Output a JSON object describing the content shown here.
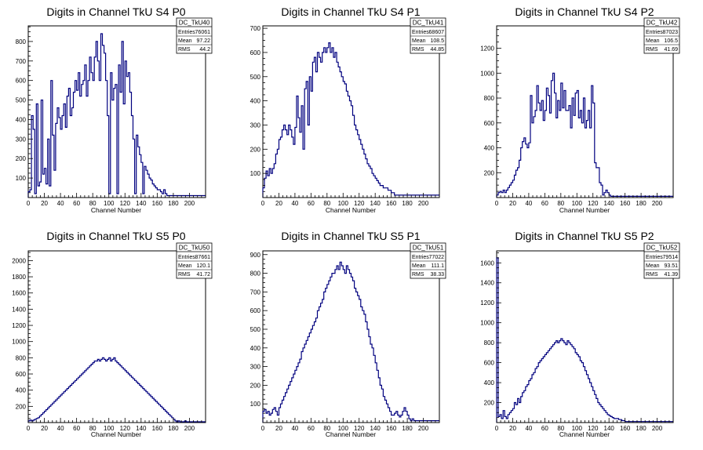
{
  "line_color": "#00007f",
  "chart_data": [
    {
      "type": "histogram",
      "title": "Digits in Channel TkU S4 P0",
      "xlabel": "Channel Number",
      "xlim": [
        0,
        220
      ],
      "ylim": [
        0,
        880
      ],
      "yticks": [
        100,
        200,
        300,
        400,
        500,
        600,
        700,
        800
      ],
      "stats": {
        "name": "DC_TkU40",
        "Entries": "76061",
        "Mean": "97.22",
        "RMS": "44.2"
      },
      "bin_width": 2,
      "values": [
        30,
        40,
        420,
        350,
        20,
        480,
        60,
        80,
        500,
        120,
        150,
        70,
        300,
        60,
        600,
        320,
        140,
        380,
        460,
        410,
        350,
        420,
        480,
        360,
        520,
        560,
        420,
        460,
        540,
        600,
        550,
        640,
        520,
        580,
        600,
        680,
        520,
        600,
        720,
        640,
        600,
        720,
        800,
        700,
        600,
        840,
        780,
        740,
        600,
        420,
        20,
        640,
        500,
        560,
        580,
        20,
        680,
        540,
        800,
        480,
        700,
        620,
        640,
        540,
        420,
        300,
        20,
        320,
        260,
        220,
        180,
        20,
        160,
        140,
        120,
        100,
        90,
        70,
        60,
        50,
        40,
        40,
        30,
        20,
        40,
        20,
        10,
        10,
        10,
        10,
        10,
        10,
        10,
        10,
        10,
        10,
        10,
        10,
        10,
        10,
        10,
        10,
        10,
        10,
        10,
        10,
        10,
        10,
        10,
        10
      ]
    },
    {
      "type": "histogram",
      "title": "Digits in Channel TkU S4 P1",
      "xlabel": "Channel Number",
      "xlim": [
        0,
        220
      ],
      "ylim": [
        0,
        710
      ],
      "yticks": [
        100,
        200,
        300,
        400,
        500,
        600,
        700
      ],
      "stats": {
        "name": "DC_TkU41",
        "Entries": "68607",
        "Mean": "108.5",
        "RMS": "44.85"
      },
      "bin_width": 2,
      "values": [
        40,
        80,
        110,
        90,
        120,
        100,
        120,
        140,
        180,
        200,
        240,
        250,
        280,
        300,
        280,
        260,
        300,
        280,
        250,
        220,
        290,
        420,
        330,
        270,
        380,
        200,
        450,
        480,
        300,
        500,
        440,
        560,
        580,
        520,
        600,
        580,
        560,
        600,
        620,
        600,
        620,
        640,
        600,
        620,
        580,
        600,
        560,
        540,
        520,
        500,
        480,
        470,
        440,
        420,
        400,
        380,
        340,
        300,
        280,
        260,
        240,
        220,
        200,
        180,
        160,
        140,
        130,
        120,
        100,
        90,
        80,
        70,
        60,
        50,
        50,
        40,
        40,
        40,
        30,
        30,
        20,
        20,
        10,
        10,
        10,
        10,
        10,
        10,
        10,
        10,
        10,
        10,
        10,
        10,
        10,
        10,
        10,
        10,
        10,
        10,
        10,
        10,
        10,
        10,
        10,
        10,
        10,
        10,
        10,
        10
      ]
    },
    {
      "type": "histogram",
      "title": "Digits in Channel TkU S4 P2",
      "xlabel": "Channel Number",
      "xlim": [
        0,
        220
      ],
      "ylim": [
        0,
        1380
      ],
      "yticks": [
        200,
        400,
        600,
        800,
        1000,
        1200
      ],
      "stats": {
        "name": "DC_TkU42",
        "Entries": "87023",
        "Mean": "106.5",
        "RMS": "41.69"
      },
      "bin_width": 2,
      "values": [
        20,
        40,
        50,
        40,
        60,
        40,
        60,
        80,
        100,
        120,
        140,
        180,
        220,
        240,
        300,
        400,
        450,
        480,
        430,
        400,
        440,
        820,
        600,
        650,
        700,
        900,
        760,
        700,
        780,
        620,
        700,
        880,
        820,
        680,
        940,
        1000,
        840,
        640,
        780,
        700,
        920,
        720,
        860,
        700,
        700,
        740,
        560,
        800,
        660,
        840,
        860,
        640,
        700,
        600,
        800,
        560,
        620,
        700,
        560,
        900,
        760,
        280,
        240,
        240,
        120,
        100,
        20,
        40,
        60,
        40,
        20,
        10,
        10,
        10,
        10,
        10,
        10,
        10,
        10,
        10,
        10,
        10,
        10,
        10,
        10,
        10,
        10,
        10,
        10,
        10,
        10,
        10,
        10,
        10,
        10,
        10,
        10,
        10,
        10,
        10,
        10,
        10,
        10,
        10,
        10,
        10,
        10,
        10,
        10,
        10
      ]
    },
    {
      "type": "histogram",
      "title": "Digits in Channel TkU S5 P0",
      "xlabel": "Channel Number",
      "xlim": [
        0,
        220
      ],
      "ylim": [
        0,
        2120
      ],
      "yticks": [
        200,
        400,
        600,
        800,
        1000,
        1200,
        1400,
        1600,
        1800,
        2000
      ],
      "stats": {
        "name": "DC_TkU50",
        "Entries": "87661",
        "Mean": "120.1",
        "RMS": "41.72"
      },
      "bin_width": 2,
      "values": [
        20,
        30,
        20,
        30,
        40,
        50,
        60,
        80,
        100,
        120,
        140,
        160,
        180,
        200,
        220,
        240,
        260,
        280,
        300,
        320,
        340,
        360,
        380,
        400,
        420,
        440,
        460,
        480,
        500,
        520,
        540,
        560,
        580,
        600,
        620,
        640,
        660,
        680,
        700,
        720,
        740,
        760,
        760,
        780,
        760,
        780,
        800,
        780,
        760,
        780,
        800,
        760,
        780,
        800,
        760,
        740,
        720,
        700,
        680,
        660,
        640,
        620,
        600,
        580,
        560,
        540,
        520,
        500,
        480,
        460,
        440,
        420,
        400,
        380,
        360,
        340,
        320,
        300,
        280,
        260,
        240,
        220,
        200,
        180,
        160,
        140,
        120,
        100,
        80,
        60,
        40,
        20,
        10,
        20,
        10,
        10,
        10,
        20,
        10,
        10,
        10,
        10,
        10,
        10,
        10,
        10,
        10,
        10,
        10,
        10
      ]
    },
    {
      "type": "histogram",
      "title": "Digits in Channel TkU S5 P1",
      "xlabel": "Channel Number",
      "xlim": [
        0,
        220
      ],
      "ylim": [
        0,
        920
      ],
      "yticks": [
        100,
        200,
        300,
        400,
        500,
        600,
        700,
        800,
        900
      ],
      "stats": {
        "name": "DC_TkU51",
        "Entries": "77022",
        "Mean": "111.1",
        "RMS": "38.33"
      },
      "bin_width": 2,
      "values": [
        60,
        70,
        50,
        60,
        40,
        50,
        70,
        80,
        60,
        40,
        80,
        100,
        120,
        140,
        160,
        180,
        200,
        220,
        240,
        260,
        280,
        300,
        320,
        340,
        380,
        400,
        420,
        440,
        460,
        480,
        500,
        520,
        540,
        560,
        600,
        620,
        640,
        660,
        700,
        720,
        740,
        760,
        780,
        800,
        800,
        820,
        840,
        820,
        860,
        840,
        820,
        800,
        840,
        820,
        800,
        780,
        760,
        720,
        700,
        680,
        660,
        620,
        600,
        580,
        540,
        500,
        460,
        420,
        400,
        360,
        320,
        280,
        240,
        200,
        180,
        140,
        120,
        100,
        80,
        60,
        40,
        40,
        50,
        60,
        40,
        30,
        40,
        60,
        80,
        60,
        40,
        20,
        10,
        20,
        10,
        10,
        10,
        10,
        10,
        10,
        10,
        10,
        10,
        10,
        10,
        10,
        10,
        10,
        10,
        10
      ]
    },
    {
      "type": "histogram",
      "title": "Digits in Channel TkU S5 P2",
      "xlabel": "Channel Number",
      "xlim": [
        0,
        220
      ],
      "ylim": [
        0,
        1720
      ],
      "yticks": [
        200,
        400,
        600,
        800,
        1000,
        1200,
        1400,
        1600
      ],
      "stats": {
        "name": "DC_TkU52",
        "Entries": "79514",
        "Mean": "93.51",
        "RMS": "41.39"
      },
      "bin_width": 2,
      "values": [
        1650,
        60,
        80,
        40,
        120,
        60,
        40,
        80,
        100,
        120,
        140,
        200,
        180,
        240,
        200,
        260,
        300,
        320,
        360,
        380,
        420,
        440,
        480,
        500,
        540,
        560,
        600,
        620,
        640,
        660,
        680,
        700,
        720,
        740,
        760,
        780,
        800,
        820,
        800,
        820,
        840,
        820,
        800,
        780,
        820,
        800,
        780,
        760,
        740,
        700,
        680,
        660,
        620,
        600,
        560,
        520,
        480,
        440,
        400,
        360,
        320,
        280,
        240,
        200,
        180,
        160,
        140,
        120,
        100,
        80,
        70,
        60,
        50,
        40,
        40,
        40,
        30,
        30,
        20,
        20,
        10,
        10,
        10,
        10,
        10,
        10,
        10,
        10,
        10,
        10,
        10,
        10,
        10,
        10,
        10,
        10,
        10,
        10,
        10,
        10,
        10,
        10,
        10,
        10,
        10,
        10,
        10,
        10,
        10,
        10
      ]
    }
  ],
  "xticks": [
    0,
    20,
    40,
    60,
    80,
    100,
    120,
    140,
    160,
    180,
    200
  ],
  "stat_labels": {
    "entries": "Entries",
    "mean": "Mean",
    "rms": "RMS"
  }
}
